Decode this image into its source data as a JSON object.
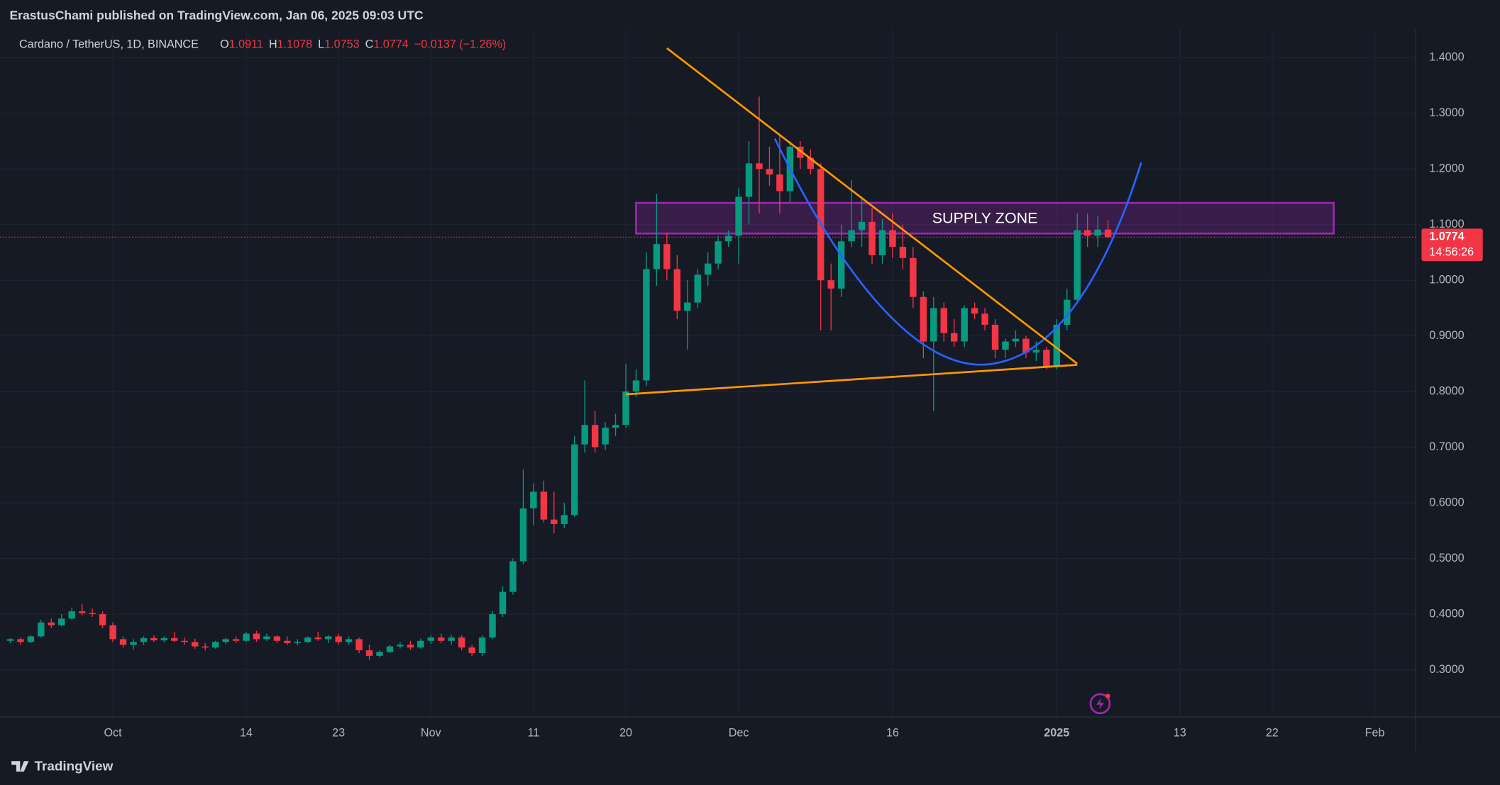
{
  "header": {
    "published": "ErastusChami published on TradingView.com, Jan 06, 2025 09:03 UTC",
    "brand": "TradingView"
  },
  "chart_data": {
    "type": "candlestick",
    "title": "Cardano / TetherUS, 1D, BINANCE",
    "legend_keys": [
      "O",
      "H",
      "L",
      "C"
    ],
    "change": "−0.0137 (−1.26%)",
    "countdown": "14:56:26",
    "up_color": "#089981",
    "down_color": "#f23645",
    "grid": true,
    "x": [
      "2024-09-21",
      "2024-09-22",
      "2024-09-23",
      "2024-09-24",
      "2024-09-25",
      "2024-09-26",
      "2024-09-27",
      "2024-09-28",
      "2024-09-29",
      "2024-09-30",
      "2024-10-01",
      "2024-10-02",
      "2024-10-03",
      "2024-10-04",
      "2024-10-05",
      "2024-10-06",
      "2024-10-07",
      "2024-10-08",
      "2024-10-09",
      "2024-10-10",
      "2024-10-11",
      "2024-10-12",
      "2024-10-13",
      "2024-10-14",
      "2024-10-15",
      "2024-10-16",
      "2024-10-17",
      "2024-10-18",
      "2024-10-19",
      "2024-10-20",
      "2024-10-21",
      "2024-10-22",
      "2024-10-23",
      "2024-10-24",
      "2024-10-25",
      "2024-10-26",
      "2024-10-27",
      "2024-10-28",
      "2024-10-29",
      "2024-10-30",
      "2024-10-31",
      "2024-11-01",
      "2024-11-02",
      "2024-11-03",
      "2024-11-04",
      "2024-11-05",
      "2024-11-06",
      "2024-11-07",
      "2024-11-08",
      "2024-11-09",
      "2024-11-10",
      "2024-11-11",
      "2024-11-12",
      "2024-11-13",
      "2024-11-14",
      "2024-11-15",
      "2024-11-16",
      "2024-11-17",
      "2024-11-18",
      "2024-11-19",
      "2024-11-20",
      "2024-11-21",
      "2024-11-22",
      "2024-11-23",
      "2024-11-24",
      "2024-11-25",
      "2024-11-26",
      "2024-11-27",
      "2024-11-28",
      "2024-11-29",
      "2024-11-30",
      "2024-12-01",
      "2024-12-02",
      "2024-12-03",
      "2024-12-04",
      "2024-12-05",
      "2024-12-06",
      "2024-12-07",
      "2024-12-08",
      "2024-12-09",
      "2024-12-10",
      "2024-12-11",
      "2024-12-12",
      "2024-12-13",
      "2024-12-14",
      "2024-12-15",
      "2024-12-16",
      "2024-12-17",
      "2024-12-18",
      "2024-12-19",
      "2024-12-20",
      "2024-12-21",
      "2024-12-22",
      "2024-12-23",
      "2024-12-24",
      "2024-12-25",
      "2024-12-26",
      "2024-12-27",
      "2024-12-28",
      "2024-12-29",
      "2024-12-30",
      "2024-12-31",
      "2025-01-01",
      "2025-01-02",
      "2025-01-03",
      "2025-01-04",
      "2025-01-05",
      "2025-01-06"
    ],
    "open": [
      0.352,
      0.355,
      0.35,
      0.36,
      0.385,
      0.38,
      0.392,
      0.405,
      0.402,
      0.4,
      0.38,
      0.355,
      0.345,
      0.35,
      0.357,
      0.353,
      0.357,
      0.352,
      0.35,
      0.342,
      0.34,
      0.35,
      0.355,
      0.352,
      0.365,
      0.355,
      0.36,
      0.352,
      0.348,
      0.35,
      0.358,
      0.355,
      0.36,
      0.35,
      0.355,
      0.335,
      0.325,
      0.332,
      0.342,
      0.345,
      0.34,
      0.352,
      0.358,
      0.352,
      0.358,
      0.34,
      0.33,
      0.358,
      0.4,
      0.44,
      0.495,
      0.59,
      0.62,
      0.57,
      0.562,
      0.578,
      0.705,
      0.74,
      0.705,
      0.735,
      0.74,
      0.8,
      0.82,
      1.02,
      1.065,
      1.02,
      0.945,
      0.96,
      1.01,
      1.03,
      1.07,
      1.08,
      1.15,
      1.21,
      1.2,
      1.19,
      1.16,
      1.24,
      1.22,
      1.2,
      1.0,
      0.985,
      1.07,
      1.09,
      1.105,
      1.045,
      1.09,
      1.06,
      1.04,
      0.97,
      0.89,
      0.95,
      0.905,
      0.89,
      0.95,
      0.94,
      0.92,
      0.875,
      0.89,
      0.895,
      0.87,
      0.875,
      0.845,
      0.92,
      0.965,
      1.09,
      1.08,
      1.0911
    ],
    "high": [
      0.357,
      0.358,
      0.362,
      0.39,
      0.392,
      0.4,
      0.412,
      0.418,
      0.41,
      0.405,
      0.385,
      0.36,
      0.355,
      0.36,
      0.362,
      0.36,
      0.368,
      0.358,
      0.356,
      0.348,
      0.352,
      0.358,
      0.36,
      0.368,
      0.37,
      0.365,
      0.362,
      0.36,
      0.355,
      0.36,
      0.368,
      0.362,
      0.365,
      0.36,
      0.358,
      0.345,
      0.335,
      0.345,
      0.35,
      0.352,
      0.356,
      0.362,
      0.365,
      0.362,
      0.362,
      0.345,
      0.362,
      0.405,
      0.45,
      0.5,
      0.66,
      0.635,
      0.64,
      0.62,
      0.6,
      0.72,
      0.82,
      0.765,
      0.745,
      0.76,
      0.85,
      0.84,
      1.05,
      1.155,
      1.085,
      1.045,
      1.0,
      1.02,
      1.05,
      1.08,
      1.09,
      1.165,
      1.25,
      1.33,
      1.24,
      1.26,
      1.25,
      1.25,
      1.235,
      1.21,
      1.03,
      1.1,
      1.18,
      1.15,
      1.13,
      1.11,
      1.12,
      1.1,
      1.06,
      0.98,
      0.97,
      0.96,
      0.93,
      0.955,
      0.96,
      0.95,
      0.93,
      0.895,
      0.91,
      0.9,
      0.89,
      0.88,
      0.93,
      0.985,
      1.12,
      1.12,
      1.115,
      1.1078
    ],
    "low": [
      0.348,
      0.345,
      0.348,
      0.358,
      0.375,
      0.378,
      0.39,
      0.398,
      0.395,
      0.375,
      0.35,
      0.34,
      0.336,
      0.345,
      0.35,
      0.349,
      0.35,
      0.345,
      0.338,
      0.335,
      0.338,
      0.346,
      0.348,
      0.35,
      0.35,
      0.352,
      0.348,
      0.345,
      0.344,
      0.348,
      0.352,
      0.348,
      0.345,
      0.345,
      0.33,
      0.318,
      0.322,
      0.33,
      0.338,
      0.336,
      0.338,
      0.346,
      0.348,
      0.345,
      0.335,
      0.325,
      0.325,
      0.355,
      0.395,
      0.435,
      0.49,
      0.56,
      0.565,
      0.545,
      0.555,
      0.575,
      0.69,
      0.69,
      0.695,
      0.72,
      0.735,
      0.79,
      0.81,
      0.99,
      1.0,
      0.93,
      0.875,
      0.95,
      0.99,
      1.02,
      1.06,
      1.03,
      1.1,
      1.12,
      1.17,
      1.12,
      1.14,
      1.2,
      1.19,
      0.91,
      0.91,
      0.97,
      1.06,
      1.06,
      1.03,
      1.03,
      1.04,
      1.02,
      0.95,
      0.86,
      0.765,
      0.89,
      0.88,
      0.88,
      0.93,
      0.91,
      0.86,
      0.86,
      0.88,
      0.86,
      0.855,
      0.84,
      0.84,
      0.91,
      0.96,
      1.06,
      1.06,
      1.0753
    ],
    "close": [
      0.355,
      0.35,
      0.36,
      0.385,
      0.38,
      0.392,
      0.405,
      0.402,
      0.4,
      0.38,
      0.355,
      0.345,
      0.35,
      0.357,
      0.353,
      0.357,
      0.352,
      0.35,
      0.342,
      0.34,
      0.35,
      0.355,
      0.352,
      0.365,
      0.355,
      0.36,
      0.352,
      0.348,
      0.35,
      0.358,
      0.355,
      0.36,
      0.35,
      0.355,
      0.335,
      0.325,
      0.332,
      0.342,
      0.345,
      0.34,
      0.352,
      0.358,
      0.352,
      0.358,
      0.34,
      0.33,
      0.358,
      0.4,
      0.44,
      0.495,
      0.59,
      0.62,
      0.57,
      0.562,
      0.578,
      0.705,
      0.74,
      0.7,
      0.735,
      0.74,
      0.8,
      0.82,
      1.02,
      1.065,
      1.02,
      0.945,
      0.96,
      1.01,
      1.03,
      1.07,
      1.08,
      1.15,
      1.21,
      1.2,
      1.19,
      1.16,
      1.24,
      1.22,
      1.2,
      1.0,
      0.985,
      1.07,
      1.09,
      1.105,
      1.045,
      1.09,
      1.06,
      1.04,
      0.97,
      0.89,
      0.95,
      0.905,
      0.89,
      0.95,
      0.94,
      0.92,
      0.875,
      0.89,
      0.895,
      0.87,
      0.875,
      0.845,
      0.92,
      0.965,
      1.09,
      1.08,
      1.0911,
      1.0774
    ],
    "xlim": [
      "2024-09-20",
      "2025-02-05"
    ],
    "xticks": [
      {
        "value": "2024-10-01",
        "label": "Oct"
      },
      {
        "value": "2024-10-14",
        "label": "14"
      },
      {
        "value": "2024-10-23",
        "label": "23"
      },
      {
        "value": "2024-11-01",
        "label": "Nov"
      },
      {
        "value": "2024-11-11",
        "label": "11"
      },
      {
        "value": "2024-11-20",
        "label": "20"
      },
      {
        "value": "2024-12-01",
        "label": "Dec"
      },
      {
        "value": "2024-12-16",
        "label": "16"
      },
      {
        "value": "2025-01-01",
        "label": "2025"
      },
      {
        "value": "2025-01-13",
        "label": "13"
      },
      {
        "value": "2025-01-22",
        "label": "22"
      },
      {
        "value": "2025-02-01",
        "label": "Feb"
      }
    ],
    "ylim": [
      0.215,
      1.452
    ],
    "yticks": [
      {
        "value": 0.3,
        "label": "0.3000"
      },
      {
        "value": 0.4,
        "label": "0.4000"
      },
      {
        "value": 0.5,
        "label": "0.5000"
      },
      {
        "value": 0.6,
        "label": "0.6000"
      },
      {
        "value": 0.7,
        "label": "0.7000"
      },
      {
        "value": 0.8,
        "label": "0.8000"
      },
      {
        "value": 0.9,
        "label": "0.9000"
      },
      {
        "value": 1.0,
        "label": "1.0000"
      },
      {
        "value": 1.1,
        "label": "1.1000"
      },
      {
        "value": 1.2,
        "label": "1.2000"
      },
      {
        "value": 1.3,
        "label": "1.3000"
      },
      {
        "value": 1.4,
        "label": "1.4000"
      }
    ],
    "supply_zone": {
      "label": "SUPPLY ZONE",
      "x": [
        "2024-11-21",
        "2025-01-28"
      ],
      "y": [
        1.084,
        1.139
      ],
      "color": "#9c27b0"
    },
    "trendlines": [
      {
        "x": [
          "2024-11-24",
          "2025-01-03"
        ],
        "y": [
          1.417,
          0.85
        ],
        "color": "#ff9800"
      },
      {
        "x": [
          "2024-11-20",
          "2025-01-03"
        ],
        "y": [
          0.795,
          0.848
        ],
        "color": "#ff9800"
      }
    ]
  }
}
